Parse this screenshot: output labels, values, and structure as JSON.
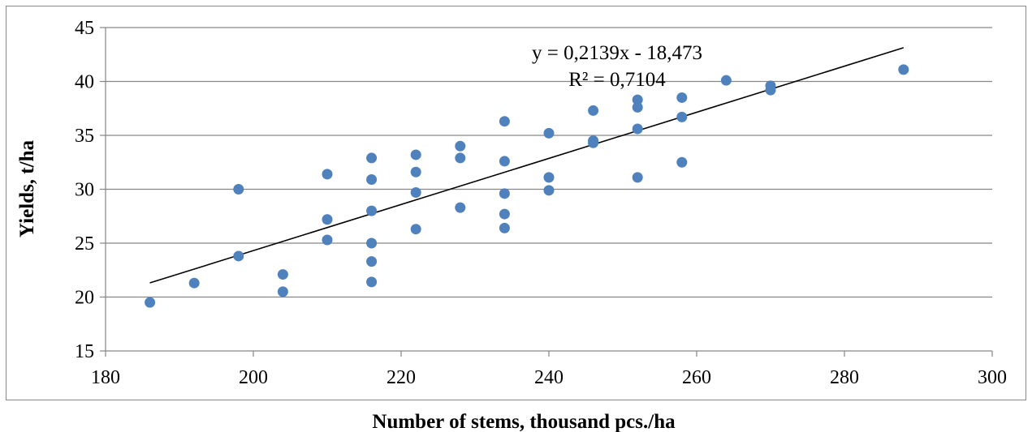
{
  "chart_data": {
    "type": "scatter",
    "xlabel": "Number of stems, thousand pcs./ha",
    "ylabel": "Yields, t/ha",
    "xlim": [
      180,
      300
    ],
    "ylim": [
      15,
      45
    ],
    "xticks": [
      "180",
      "200",
      "220",
      "240",
      "260",
      "280",
      "300"
    ],
    "yticks": [
      "15",
      "20",
      "25",
      "30",
      "35",
      "40",
      "45"
    ],
    "grid": "horizontal",
    "legend": "none",
    "point_color": "#4F81BD",
    "trendline": {
      "type": "linear",
      "slope": 0.2139,
      "intercept": -18.473,
      "x_range": [
        186,
        288
      ],
      "equation": "y = 0,2139x - 18,473",
      "r_squared": "R² = 0,7104",
      "color": "#000000"
    },
    "points": [
      [
        186,
        19.5
      ],
      [
        192,
        21.3
      ],
      [
        198,
        23.8
      ],
      [
        198,
        30.0
      ],
      [
        204,
        20.5
      ],
      [
        204,
        22.1
      ],
      [
        210,
        25.3
      ],
      [
        210,
        27.2
      ],
      [
        210,
        31.4
      ],
      [
        216,
        21.4
      ],
      [
        216,
        23.3
      ],
      [
        216,
        25.0
      ],
      [
        216,
        28.0
      ],
      [
        216,
        30.9
      ],
      [
        216,
        32.9
      ],
      [
        222,
        26.3
      ],
      [
        222,
        29.7
      ],
      [
        222,
        31.6
      ],
      [
        222,
        33.2
      ],
      [
        228,
        28.3
      ],
      [
        228,
        32.9
      ],
      [
        228,
        34.0
      ],
      [
        234,
        26.4
      ],
      [
        234,
        27.7
      ],
      [
        234,
        29.6
      ],
      [
        234,
        32.6
      ],
      [
        234,
        36.3
      ],
      [
        240,
        29.9
      ],
      [
        240,
        31.1
      ],
      [
        240,
        35.2
      ],
      [
        246,
        34.3
      ],
      [
        246,
        34.5
      ],
      [
        246,
        37.3
      ],
      [
        252,
        31.1
      ],
      [
        252,
        35.6
      ],
      [
        252,
        37.6
      ],
      [
        252,
        38.3
      ],
      [
        258,
        32.5
      ],
      [
        258,
        36.7
      ],
      [
        258,
        38.5
      ],
      [
        264,
        40.1
      ],
      [
        270,
        39.2
      ],
      [
        270,
        39.6
      ],
      [
        288,
        41.1
      ]
    ]
  }
}
